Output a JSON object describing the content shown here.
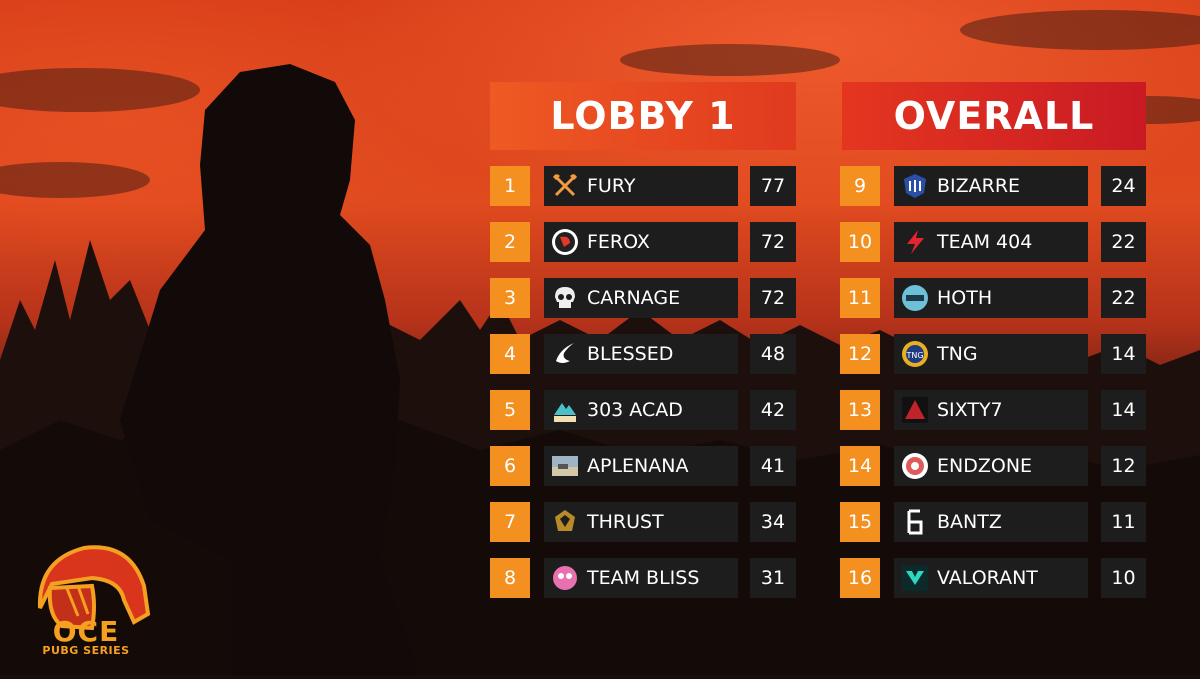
{
  "lobby": {
    "title": "LOBBY 1",
    "rows": [
      {
        "rank": "1",
        "team": "FURY",
        "score": "77",
        "logo": "crossed-axes-icon"
      },
      {
        "rank": "2",
        "team": "FEROX",
        "score": "72",
        "logo": "ferox-emblem-icon"
      },
      {
        "rank": "3",
        "team": "CARNAGE",
        "score": "72",
        "logo": "skull-icon"
      },
      {
        "rank": "4",
        "team": "BLESSED",
        "score": "48",
        "logo": "wing-icon"
      },
      {
        "rank": "5",
        "team": "303 ACAD",
        "score": "42",
        "logo": "303-mountain-icon"
      },
      {
        "rank": "6",
        "team": "APLENANA",
        "score": "41",
        "logo": "landscape-photo-icon"
      },
      {
        "rank": "7",
        "team": "THRUST",
        "score": "34",
        "logo": "thrust-crest-icon"
      },
      {
        "rank": "8",
        "team": "TEAM BLISS",
        "score": "31",
        "logo": "bliss-mascot-icon"
      }
    ]
  },
  "overall": {
    "title": "OVERALL",
    "rows": [
      {
        "rank": "9",
        "team": "BIZARRE",
        "score": "24",
        "logo": "bizarre-shield-icon"
      },
      {
        "rank": "10",
        "team": "TEAM 404",
        "score": "22",
        "logo": "lightning-bolt-icon"
      },
      {
        "rank": "11",
        "team": "HOTH",
        "score": "22",
        "logo": "hoth-badge-icon"
      },
      {
        "rank": "12",
        "team": "TNG",
        "score": "14",
        "logo": "tng-lion-icon"
      },
      {
        "rank": "13",
        "team": "SIXTY7",
        "score": "14",
        "logo": "sixty7-emblem-icon"
      },
      {
        "rank": "14",
        "team": "ENDZONE",
        "score": "12",
        "logo": "endzone-circle-icon"
      },
      {
        "rank": "15",
        "team": "BANTZ",
        "score": "11",
        "logo": "bantz-b-icon"
      },
      {
        "rank": "16",
        "team": "VALORANT",
        "score": "10",
        "logo": "valorant-mascot-icon"
      }
    ]
  },
  "brand": {
    "name": "OCE",
    "subtitle": "PUBG SERIES",
    "logo": "pubg-helmet-icon"
  },
  "colors": {
    "rank_bg": "#f39020",
    "row_bg": "#1d1d1d",
    "lobby_header": "#ee5a23",
    "overall_header": "#e4361f",
    "brand": "#f5a020"
  }
}
